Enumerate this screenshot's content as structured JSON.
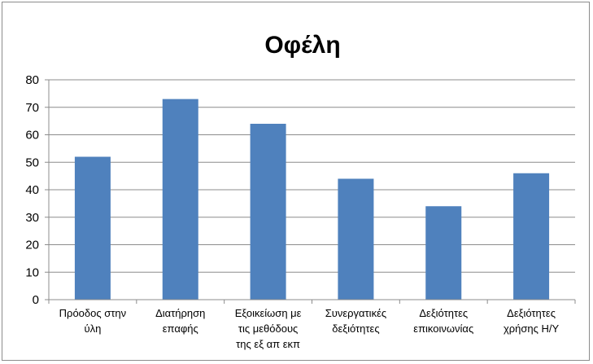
{
  "chart_data": {
    "type": "bar",
    "title": "Οφέλη",
    "xlabel": "",
    "ylabel": "",
    "categories": [
      [
        "Πρόοδος στην",
        "ύλη"
      ],
      [
        "Διατήρηση",
        "επαφής"
      ],
      [
        "Εξοικείωση με",
        "τις μεθόδους",
        "της εξ απ εκπ"
      ],
      [
        "Συνεργατικές",
        "δεξιότητες"
      ],
      [
        "Δεξιότητες",
        "επικοινωνίας"
      ],
      [
        "Δεξιότητες",
        "χρήσης Η/Υ"
      ]
    ],
    "values": [
      52,
      73,
      64,
      44,
      34,
      46
    ],
    "ylim": [
      0,
      80
    ],
    "yticks": [
      0,
      10,
      20,
      30,
      40,
      50,
      60,
      70,
      80
    ],
    "grid": true,
    "legend": "none",
    "colors": {
      "bar": "#4f81bd",
      "grid": "#8c8c8c",
      "axis": "#8c8c8c"
    }
  }
}
